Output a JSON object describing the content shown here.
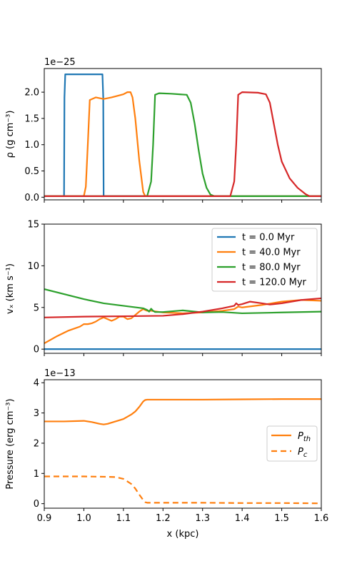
{
  "colors": {
    "blue": "#1f77b4",
    "orange": "#ff7f0e",
    "green": "#2ca02c",
    "red": "#d62728"
  },
  "chart_data": [
    {
      "type": "line",
      "xlim": [
        0.9,
        1.6
      ],
      "ylim": [
        -0.05,
        2.45
      ],
      "yticks": [
        "0.0",
        "0.5",
        "1.0",
        "1.5",
        "2.0"
      ],
      "ytick_values": [
        0,
        0.5,
        1.0,
        1.5,
        2.0
      ],
      "offset_text": "1e−25",
      "ylabel": "ρ (g cm⁻³)",
      "series": [
        {
          "name": "t = 0.0 Myr",
          "color": "#1f77b4",
          "x": [
            0.9,
            0.95,
            0.951,
            0.953,
            1.047,
            1.049,
            1.05,
            1.6
          ],
          "y": [
            0.02,
            0.02,
            1.9,
            2.34,
            2.34,
            1.9,
            0.02,
            0.02
          ]
        },
        {
          "name": "t = 40.0 Myr",
          "color": "#ff7f0e",
          "x": [
            0.9,
            1.0,
            1.005,
            1.01,
            1.015,
            1.03,
            1.05,
            1.07,
            1.09,
            1.1,
            1.11,
            1.118,
            1.123,
            1.13,
            1.14,
            1.15,
            1.155,
            1.16,
            1.6
          ],
          "y": [
            0.02,
            0.02,
            0.2,
            1.0,
            1.85,
            1.9,
            1.87,
            1.9,
            1.94,
            1.96,
            2.0,
            2.0,
            1.9,
            1.5,
            0.7,
            0.1,
            0.02,
            0.02,
            0.02
          ]
        },
        {
          "name": "t = 80.0 Myr",
          "color": "#2ca02c",
          "x": [
            0.9,
            1.16,
            1.17,
            1.175,
            1.18,
            1.19,
            1.22,
            1.26,
            1.27,
            1.28,
            1.29,
            1.3,
            1.31,
            1.32,
            1.33,
            1.6
          ],
          "y": [
            0.02,
            0.02,
            0.3,
            1.0,
            1.95,
            1.98,
            1.97,
            1.95,
            1.8,
            1.4,
            0.9,
            0.45,
            0.18,
            0.05,
            0.02,
            0.02
          ]
        },
        {
          "name": "t = 120.0 Myr",
          "color": "#d62728",
          "x": [
            0.9,
            1.37,
            1.38,
            1.385,
            1.39,
            1.4,
            1.44,
            1.46,
            1.47,
            1.48,
            1.49,
            1.5,
            1.52,
            1.54,
            1.56,
            1.57,
            1.6
          ],
          "y": [
            0.02,
            0.02,
            0.3,
            1.0,
            1.95,
            2.0,
            1.99,
            1.96,
            1.8,
            1.4,
            1.0,
            0.68,
            0.36,
            0.18,
            0.06,
            0.02,
            0.02
          ]
        }
      ]
    },
    {
      "type": "line",
      "xlim": [
        0.9,
        1.6
      ],
      "ylim": [
        -0.5,
        15
      ],
      "yticks": [
        "0",
        "5",
        "10",
        "15"
      ],
      "ytick_values": [
        0,
        5,
        10,
        15
      ],
      "ylabel": "vₓ (km s⁻¹)",
      "legend": "top-right",
      "series": [
        {
          "name": "t = 0.0 Myr",
          "color": "#1f77b4",
          "x": [
            0.9,
            1.6
          ],
          "y": [
            0,
            0
          ]
        },
        {
          "name": "t = 40.0 Myr",
          "color": "#ff7f0e",
          "x": [
            0.9,
            0.93,
            0.96,
            0.99,
            1.0,
            1.01,
            1.02,
            1.03,
            1.04,
            1.05,
            1.06,
            1.07,
            1.08,
            1.09,
            1.1,
            1.11,
            1.12,
            1.13,
            1.14,
            1.15,
            1.16,
            1.17,
            1.2,
            1.25,
            1.3,
            1.35,
            1.38,
            1.39,
            1.4,
            1.45,
            1.5,
            1.55,
            1.6
          ],
          "y": [
            0.7,
            1.5,
            2.2,
            2.7,
            3.0,
            3.0,
            3.1,
            3.3,
            3.6,
            3.8,
            3.6,
            3.4,
            3.6,
            3.9,
            3.9,
            3.6,
            3.7,
            4.1,
            4.5,
            4.8,
            4.6,
            4.6,
            4.4,
            4.3,
            4.4,
            4.6,
            4.8,
            5.1,
            5.0,
            5.3,
            5.7,
            5.9,
            5.8
          ]
        },
        {
          "name": "t = 80.0 Myr",
          "color": "#2ca02c",
          "x": [
            0.9,
            0.95,
            1.0,
            1.05,
            1.1,
            1.15,
            1.16,
            1.165,
            1.17,
            1.175,
            1.18,
            1.2,
            1.25,
            1.3,
            1.35,
            1.4,
            1.5,
            1.6
          ],
          "y": [
            7.2,
            6.6,
            6.0,
            5.5,
            5.2,
            4.9,
            4.7,
            4.5,
            4.85,
            4.6,
            4.45,
            4.45,
            4.65,
            4.4,
            4.45,
            4.3,
            4.4,
            4.5
          ]
        },
        {
          "name": "t = 120.0 Myr",
          "color": "#d62728",
          "x": [
            0.9,
            1.0,
            1.1,
            1.2,
            1.25,
            1.3,
            1.35,
            1.38,
            1.385,
            1.39,
            1.4,
            1.42,
            1.45,
            1.47,
            1.5,
            1.55,
            1.6
          ],
          "y": [
            3.8,
            3.9,
            3.95,
            4.0,
            4.2,
            4.5,
            4.9,
            5.2,
            5.5,
            5.3,
            5.4,
            5.7,
            5.5,
            5.35,
            5.5,
            5.9,
            6.1
          ]
        }
      ]
    },
    {
      "type": "line",
      "xlim": [
        0.9,
        1.6
      ],
      "xticks": [
        "0.9",
        "1.0",
        "1.1",
        "1.2",
        "1.3",
        "1.4",
        "1.5",
        "1.6"
      ],
      "xtick_values": [
        0.9,
        1.0,
        1.1,
        1.2,
        1.3,
        1.4,
        1.5,
        1.6
      ],
      "xlabel": "x (kpc)",
      "ylim": [
        -0.15,
        4.1
      ],
      "yticks": [
        "0",
        "1",
        "2",
        "3",
        "4"
      ],
      "ytick_values": [
        0,
        1,
        2,
        3,
        4
      ],
      "offset_text": "1e−13",
      "ylabel": "Pressure (erg cm⁻³)",
      "legend": "center-right",
      "series": [
        {
          "name": "P_th",
          "label_main": "P",
          "label_sub": "th",
          "color": "#ff7f0e",
          "dash": "solid",
          "x": [
            0.9,
            0.95,
            1.0,
            1.02,
            1.04,
            1.05,
            1.06,
            1.08,
            1.1,
            1.12,
            1.13,
            1.14,
            1.15,
            1.155,
            1.16,
            1.2,
            1.3,
            1.4,
            1.5,
            1.6
          ],
          "y": [
            2.72,
            2.72,
            2.74,
            2.7,
            2.64,
            2.62,
            2.64,
            2.72,
            2.8,
            2.95,
            3.05,
            3.2,
            3.38,
            3.43,
            3.44,
            3.44,
            3.44,
            3.45,
            3.46,
            3.46
          ]
        },
        {
          "name": "P_c",
          "label_main": "P",
          "label_sub": "c",
          "color": "#ff7f0e",
          "dash": "dashed",
          "x": [
            0.9,
            1.0,
            1.05,
            1.08,
            1.1,
            1.12,
            1.13,
            1.14,
            1.15,
            1.155,
            1.16,
            1.2,
            1.3,
            1.4,
            1.5,
            1.6
          ],
          "y": [
            0.9,
            0.9,
            0.89,
            0.88,
            0.82,
            0.65,
            0.5,
            0.3,
            0.12,
            0.05,
            0.03,
            0.03,
            0.03,
            0.02,
            0.02,
            0.01
          ]
        }
      ]
    }
  ]
}
